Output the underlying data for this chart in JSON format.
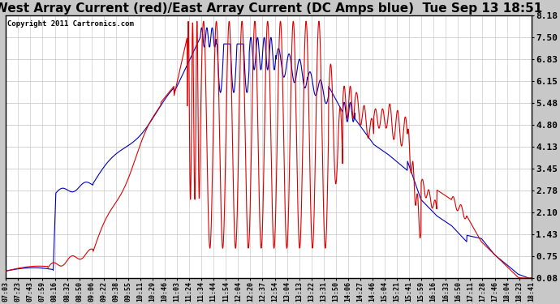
{
  "title": "West Array Current (red)/East Array Current (DC Amps blue)  Tue Sep 13 18:51",
  "copyright": "Copyright 2011 Cartronics.com",
  "yticks": [
    0.08,
    0.75,
    1.43,
    2.1,
    2.78,
    3.45,
    4.13,
    4.8,
    5.48,
    6.15,
    6.83,
    7.5,
    8.18
  ],
  "ylim": [
    0.08,
    8.18
  ],
  "background_color": "#c8c8c8",
  "plot_background": "#ffffff",
  "grid_color": "#cccccc",
  "red_color": "#dd0000",
  "blue_color": "#0000bb",
  "title_fontsize": 11,
  "title_color": "#000000",
  "xtick_labels": [
    "07:03",
    "07:23",
    "07:43",
    "07:59",
    "08:16",
    "08:32",
    "08:50",
    "09:06",
    "09:22",
    "09:38",
    "09:55",
    "10:11",
    "10:29",
    "10:46",
    "11:03",
    "11:24",
    "11:34",
    "11:44",
    "11:54",
    "12:04",
    "12:20",
    "12:37",
    "12:54",
    "13:04",
    "13:13",
    "13:22",
    "13:31",
    "13:50",
    "14:06",
    "14:27",
    "14:46",
    "15:04",
    "15:21",
    "15:41",
    "15:59",
    "16:16",
    "16:33",
    "16:50",
    "17:11",
    "17:28",
    "17:46",
    "18:04",
    "18:23",
    "18:41"
  ]
}
